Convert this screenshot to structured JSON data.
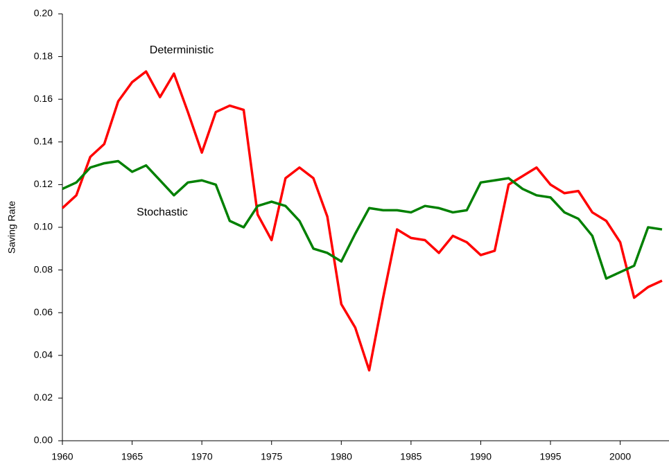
{
  "chart_data": {
    "type": "line",
    "y_label": "Saving Rate",
    "x": [
      1960,
      1961,
      1962,
      1963,
      1964,
      1965,
      1966,
      1967,
      1968,
      1969,
      1970,
      1971,
      1972,
      1973,
      1974,
      1975,
      1976,
      1977,
      1978,
      1979,
      1980,
      1981,
      1982,
      1983,
      1984,
      1985,
      1986,
      1987,
      1988,
      1989,
      1990,
      1991,
      1992,
      1993,
      1994,
      1995,
      1996,
      1997,
      1998,
      1999,
      2000,
      2001,
      2002,
      2003
    ],
    "series": [
      {
        "name": "Deterministic",
        "color": "#ff0000",
        "values": [
          0.109,
          0.115,
          0.133,
          0.139,
          0.159,
          0.168,
          0.173,
          0.161,
          0.172,
          0.154,
          0.135,
          0.154,
          0.157,
          0.155,
          0.106,
          0.094,
          0.123,
          0.128,
          0.123,
          0.105,
          0.064,
          0.053,
          0.033,
          0.067,
          0.099,
          0.095,
          0.094,
          0.088,
          0.096,
          0.093,
          0.087,
          0.089,
          0.12,
          0.124,
          0.128,
          0.12,
          0.116,
          0.117,
          0.107,
          0.103,
          0.093,
          0.067,
          0.072,
          0.075
        ]
      },
      {
        "name": "Stochastic",
        "color": "#008000",
        "values": [
          0.118,
          0.121,
          0.128,
          0.13,
          0.131,
          0.126,
          0.129,
          0.122,
          0.115,
          0.121,
          0.122,
          0.12,
          0.103,
          0.1,
          0.11,
          0.112,
          0.11,
          0.103,
          0.09,
          0.088,
          0.084,
          0.097,
          0.109,
          0.108,
          0.108,
          0.107,
          0.11,
          0.109,
          0.107,
          0.108,
          0.121,
          0.122,
          0.123,
          0.118,
          0.115,
          0.114,
          0.107,
          0.104,
          0.096,
          0.076,
          0.079,
          0.082,
          0.1,
          0.099
        ]
      }
    ],
    "xlim": [
      1960,
      2003.5
    ],
    "xticks": [
      1960,
      1965,
      1970,
      1975,
      1980,
      1985,
      1990,
      1995,
      2000
    ],
    "ylim": [
      0,
      0.2
    ],
    "yticks": [
      {
        "value": 0,
        "label": "0.00"
      },
      {
        "value": 0.02,
        "label": "0.02"
      },
      {
        "value": 0.04,
        "label": "0.04"
      },
      {
        "value": 0.06,
        "label": "0.06"
      },
      {
        "value": 0.08,
        "label": "0.08"
      },
      {
        "value": 0.1,
        "label": "0.10"
      },
      {
        "value": 0.12,
        "label": "0.12"
      },
      {
        "value": 0.14,
        "label": "0.14"
      },
      {
        "value": 0.16,
        "label": "0.16"
      },
      {
        "value": 0.18,
        "label": "0.18"
      },
      {
        "value": 0.2,
        "label": "0.20"
      }
    ],
    "grid": false
  }
}
